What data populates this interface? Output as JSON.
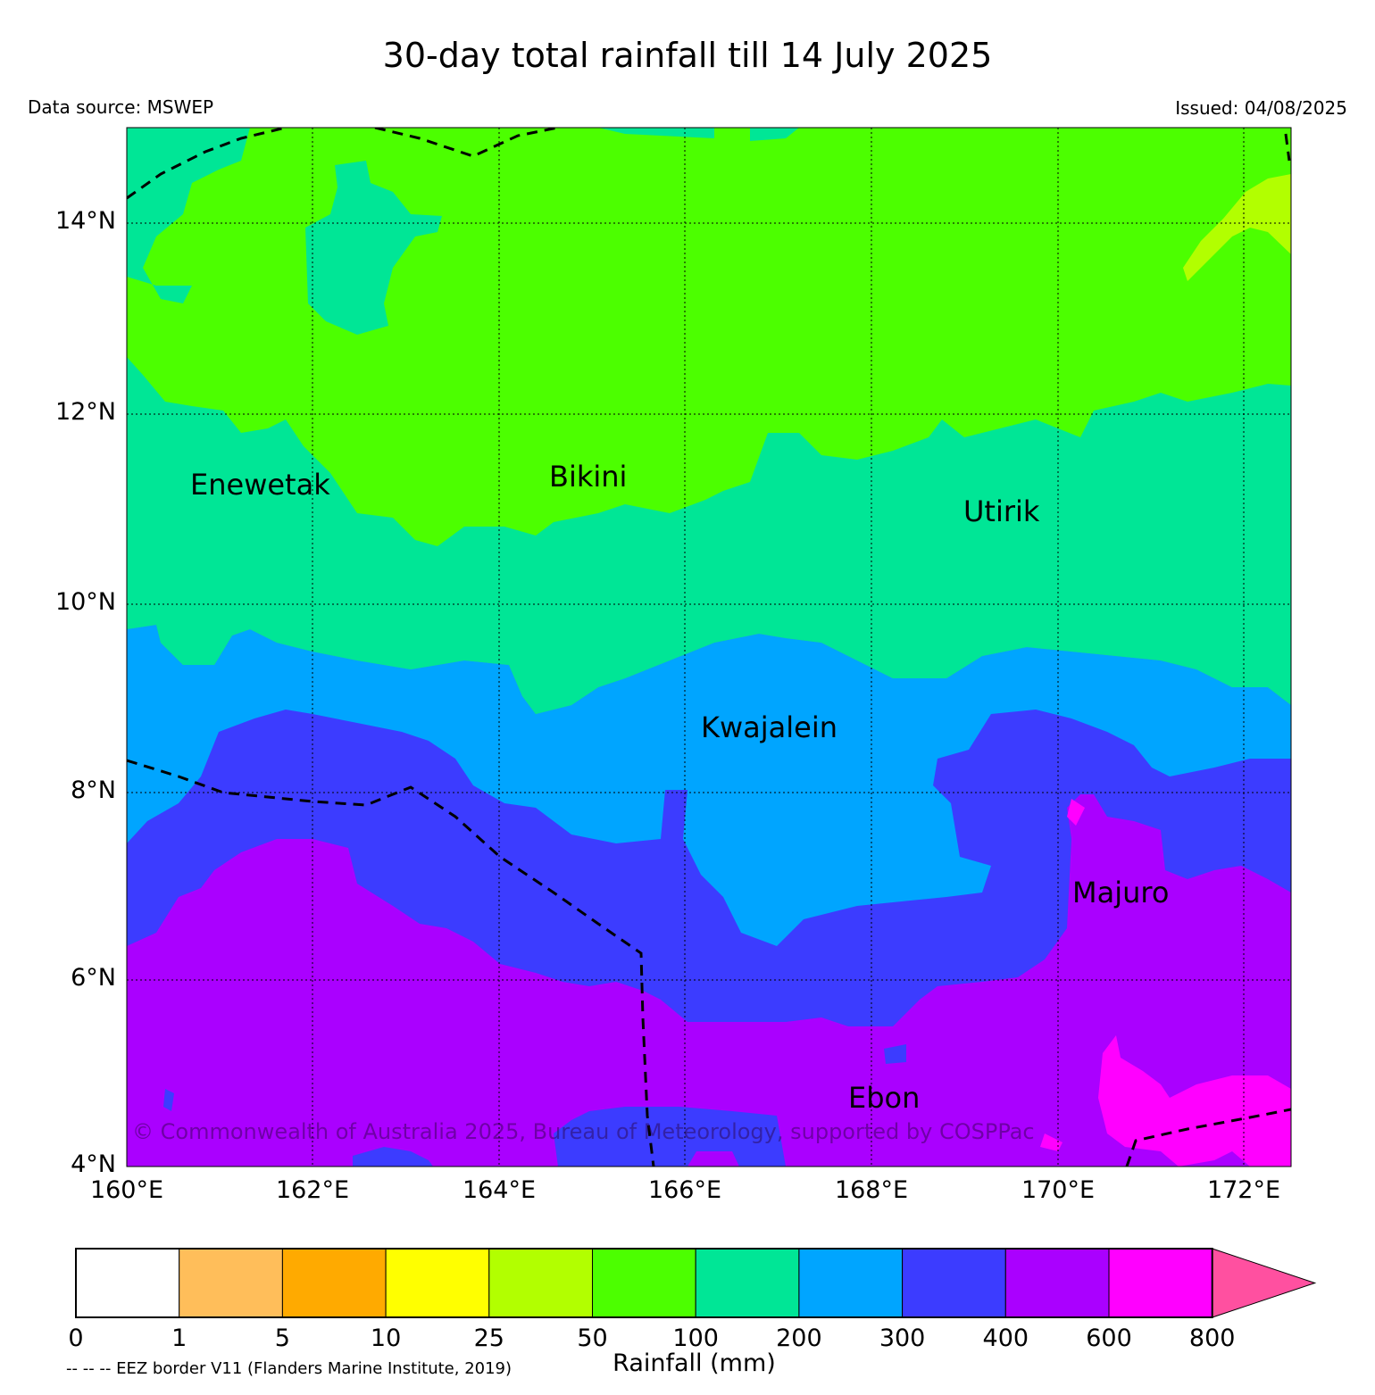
{
  "title": "30-day total rainfall till 14 July 2025",
  "data_source": "Data source: MSWEP",
  "issued": "Issued: 04/08/2025",
  "copyright": "© Commonwealth of Australia 2025, Bureau of Meteorology, supported by COSPPac",
  "latitude_labels": [
    "14°N",
    "12°N",
    "10°N",
    "8°N",
    "6°N",
    "4°N"
  ],
  "longitude_labels": [
    "160°E",
    "162°E",
    "164°E",
    "166°E",
    "168°E",
    "170°E",
    "172°E"
  ],
  "places": [
    "Enewetak",
    "Bikini",
    "Utirik",
    "Kwajalein",
    "Majuro",
    "Ebon"
  ],
  "colorbar": {
    "title": "Rainfall (mm)",
    "bounds": [
      "0",
      "1",
      "5",
      "10",
      "25",
      "50",
      "100",
      "200",
      "300",
      "400",
      "600",
      "800"
    ],
    "colors": [
      "#ffffff",
      "#ffbe5a",
      "#ffaa00",
      "#ffff00",
      "#b2ff00",
      "#4cff00",
      "#00e696",
      "#00a5ff",
      "#3c3cff",
      "#aa00ff",
      "#ff00ff",
      "#ff50a0"
    ]
  },
  "eez_note": "-- -- -- EEZ border V11 (Flanders Marine Institute, 2019)",
  "map_colors": {
    "r50_100": "#4cff00",
    "r100_200": "#00e696",
    "r200_300": "#00a5ff",
    "r300_400": "#3c3cff",
    "r400_600": "#aa00ff",
    "r600_800": "#ff00ff",
    "r25_50": "#b2ff00"
  }
}
